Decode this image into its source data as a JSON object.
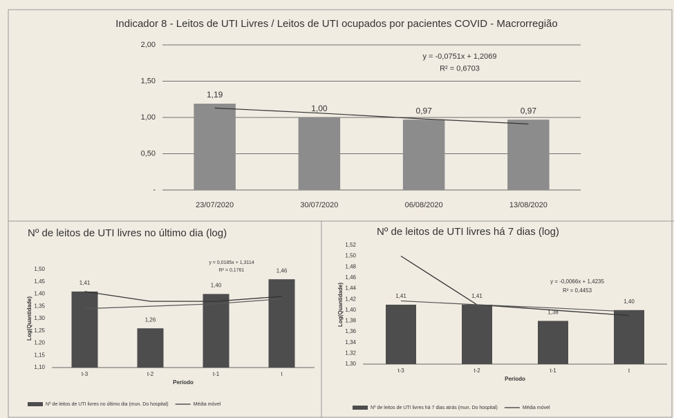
{
  "chart_data": [
    {
      "type": "bar",
      "title": "Indicador 8 - Leitos de UTI Livres / Leitos de UTI ocupados por pacientes COVID - Macrorregião",
      "categories": [
        "23/07/2020",
        "30/07/2020",
        "06/08/2020",
        "13/08/2020"
      ],
      "series": [
        {
          "color": "#8c8c8c",
          "values": [
            1.19,
            1.0,
            0.97,
            0.97
          ],
          "value_labels": [
            "1,19",
            "1,00",
            "0,97",
            "0,97"
          ]
        }
      ],
      "trendline": {
        "color": "#333333",
        "values": [
          1.13,
          1.06,
          0.98,
          0.91
        ]
      },
      "annotations": [
        "y = -0,0751x + 1,2069",
        "R² = 0,6703"
      ],
      "ylim": [
        0,
        2
      ],
      "yticks": [
        {
          "value": 0,
          "label": "-"
        },
        {
          "value": 0.5,
          "label": "0,50"
        },
        {
          "value": 1,
          "label": "1,00"
        },
        {
          "value": 1.5,
          "label": "1,50"
        },
        {
          "value": 2,
          "label": "2,00"
        }
      ],
      "grid": true
    },
    {
      "type": "bar",
      "title": "Nº de leitos de UTI livres no último dia (log)",
      "x_label": "Período",
      "y_label": "Log(Quantidade)",
      "categories": [
        "t-3",
        "t-2",
        "t-1",
        "t"
      ],
      "series": [
        {
          "name": "Nº de leitos de UTI livres no último dia (mun. Do hospital)",
          "color": "#4d4d4d",
          "values": [
            1.41,
            1.26,
            1.4,
            1.46
          ],
          "value_labels": [
            "1,41",
            "1,26",
            "1,40",
            "1,46"
          ]
        },
        {
          "name": "Média móvel",
          "type": "line",
          "color": "#333333",
          "values": [
            1.41,
            1.37,
            1.37,
            1.39
          ]
        }
      ],
      "trendline": {
        "color": "#555555",
        "values": [
          1.34,
          1.35,
          1.36,
          1.38
        ]
      },
      "annotations": [
        "y = 0,0185x + 1,3114",
        "R² = 0,1761"
      ],
      "ylim": [
        1.1,
        1.5
      ],
      "yticks": [
        {
          "value": 1.1,
          "label": "1,10"
        },
        {
          "value": 1.15,
          "label": "1,15"
        },
        {
          "value": 1.2,
          "label": "1,20"
        },
        {
          "value": 1.25,
          "label": "1,25"
        },
        {
          "value": 1.3,
          "label": "1,30"
        },
        {
          "value": 1.35,
          "label": "1,35"
        },
        {
          "value": 1.4,
          "label": "1,40"
        },
        {
          "value": 1.45,
          "label": "1,45"
        },
        {
          "value": 1.5,
          "label": "1,50"
        }
      ],
      "grid": false
    },
    {
      "type": "bar",
      "title": "Nº de leitos de UTI livres há 7 dias (log)",
      "x_label": "Período",
      "y_label": "Log(Quantidade)",
      "categories": [
        "t-3",
        "t-2",
        "t-1",
        "t"
      ],
      "series": [
        {
          "name": "Nº de leitos de UTI livres há 7 dias atrás (mun. Do hospital)",
          "color": "#4d4d4d",
          "values": [
            1.41,
            1.41,
            1.38,
            1.4
          ],
          "value_labels": [
            "1,41",
            "1,41",
            "1,38",
            "1,40"
          ]
        },
        {
          "name": "Média móvel",
          "type": "line",
          "color": "#333333",
          "values": [
            1.5,
            1.41,
            1.4,
            1.39
          ]
        }
      ],
      "trendline": {
        "color": "#555555",
        "values": [
          1.417,
          1.41,
          1.404,
          1.397
        ]
      },
      "annotations": [
        "y = -0,0066x + 1,4235",
        "R² = 0,4453"
      ],
      "ylim": [
        1.3,
        1.52
      ],
      "yticks": [
        {
          "value": 1.3,
          "label": "1,30"
        },
        {
          "value": 1.32,
          "label": "1,32"
        },
        {
          "value": 1.34,
          "label": "1,34"
        },
        {
          "value": 1.36,
          "label": "1,36"
        },
        {
          "value": 1.38,
          "label": "1,38"
        },
        {
          "value": 1.4,
          "label": "1,40"
        },
        {
          "value": 1.42,
          "label": "1,42"
        },
        {
          "value": 1.44,
          "label": "1,44"
        },
        {
          "value": 1.46,
          "label": "1,46"
        },
        {
          "value": 1.48,
          "label": "1,48"
        },
        {
          "value": 1.5,
          "label": "1,50"
        },
        {
          "value": 1.52,
          "label": "1,52"
        }
      ],
      "grid": false
    }
  ]
}
